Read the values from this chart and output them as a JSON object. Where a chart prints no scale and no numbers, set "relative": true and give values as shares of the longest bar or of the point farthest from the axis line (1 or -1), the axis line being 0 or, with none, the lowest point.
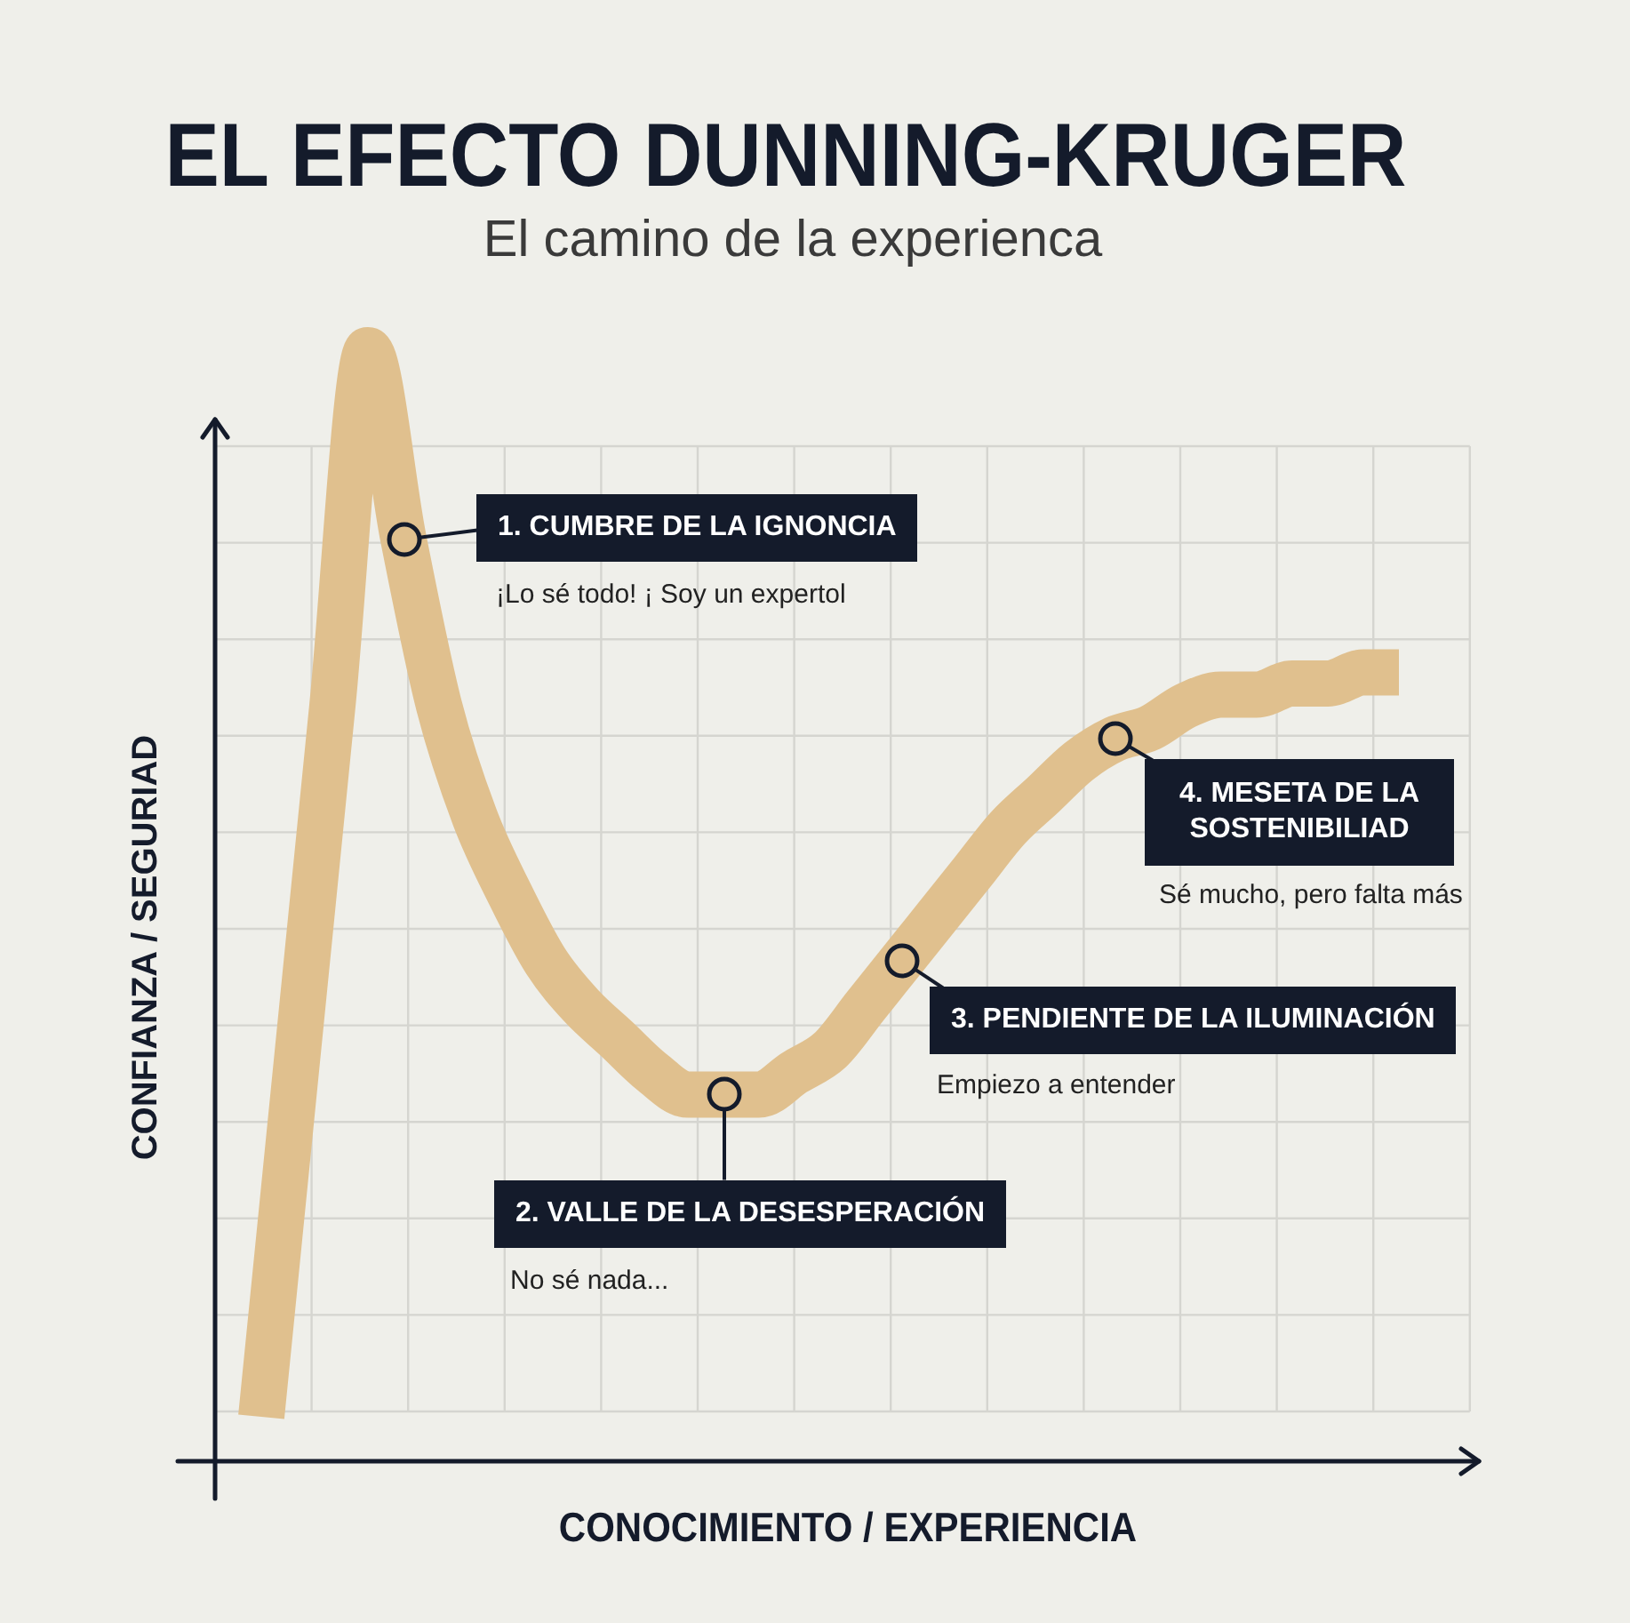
{
  "chart_data": {
    "type": "line",
    "title": "EL EFECTO DUNNING-KRUGER",
    "subtitle": "El camino de la experienca",
    "xlabel": "CONOCIMIENTO / EXPERIENCIA",
    "ylabel": "CONFIANZA / SEGURIAD",
    "categories": [
      null,
      null,
      null,
      null,
      null,
      null,
      null,
      null,
      null,
      null,
      null,
      null,
      null,
      null,
      null,
      null,
      null,
      null,
      null,
      null,
      null,
      null,
      null,
      null,
      null,
      null,
      null,
      null,
      null,
      null,
      null,
      null,
      null
    ],
    "values": [
      0.04,
      0.36,
      0.68,
      1,
      0.83,
      0.68,
      0.58,
      0.51,
      0.45,
      0.41,
      0.38,
      0.35,
      0.33,
      0.33,
      0.33,
      0.35,
      0.37,
      0.41,
      0.45,
      0.49,
      0.53,
      0.57,
      0.6,
      0.63,
      0.65,
      0.66,
      0.68,
      0.69,
      0.69,
      0.7,
      0.7,
      0.71,
      0.71
    ],
    "color": "#e0c08e",
    "relative": true,
    "grid": true,
    "annotations": [
      "1. CUMBRE DE LA IGNONCIA",
      "¡Lo sé todo! ¡ Soy un expertol",
      "2. VALLE DE LA DESESPERACIÓN",
      "No sé nada...",
      "3. PENDIENTE DE LA ILUMINACIÓN",
      "Empiezo a entender",
      "4. MESETA DE LA SOSTENIBILIAD",
      "Sé mucho, pero falta más"
    ]
  }
}
